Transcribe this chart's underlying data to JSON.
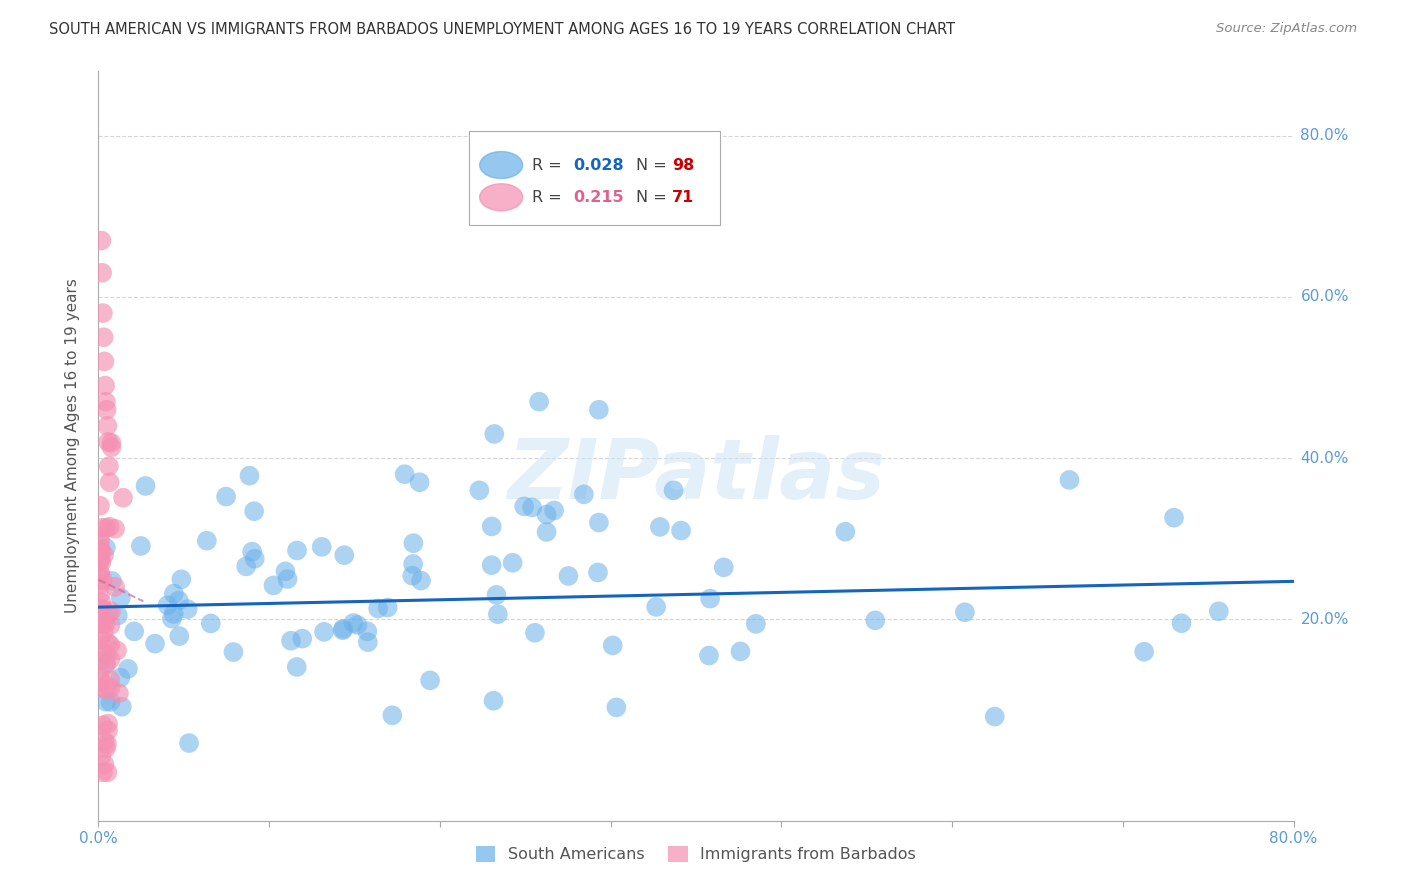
{
  "title": "SOUTH AMERICAN VS IMMIGRANTS FROM BARBADOS UNEMPLOYMENT AMONG AGES 16 TO 19 YEARS CORRELATION CHART",
  "source": "Source: ZipAtlas.com",
  "ylabel": "Unemployment Among Ages 16 to 19 years",
  "ytick_labels": [
    "20.0%",
    "40.0%",
    "60.0%",
    "80.0%"
  ],
  "ytick_values": [
    0.2,
    0.4,
    0.6,
    0.8
  ],
  "xtick_labels": [
    "0.0%",
    "",
    "",
    "",
    "",
    "",
    "",
    "80.0%"
  ],
  "xlim": [
    0.0,
    0.8
  ],
  "ylim": [
    -0.05,
    0.88
  ],
  "watermark": "ZIPatlas",
  "south_american_R": 0.028,
  "south_american_N": 98,
  "barbados_R": 0.215,
  "barbados_N": 71,
  "sa_color": "#6ab0e8",
  "bb_color": "#f48fb1",
  "sa_line_color": "#1565C0",
  "bb_line_color": "#e06090",
  "grid_color": "#cccccc",
  "bg_color": "#ffffff",
  "title_color": "#333333",
  "source_color": "#888888",
  "tick_label_color": "#5b9bd5",
  "legend_R_sa": "0.028",
  "legend_N_sa": "98",
  "legend_R_bb": "0.215",
  "legend_N_bb": "71"
}
